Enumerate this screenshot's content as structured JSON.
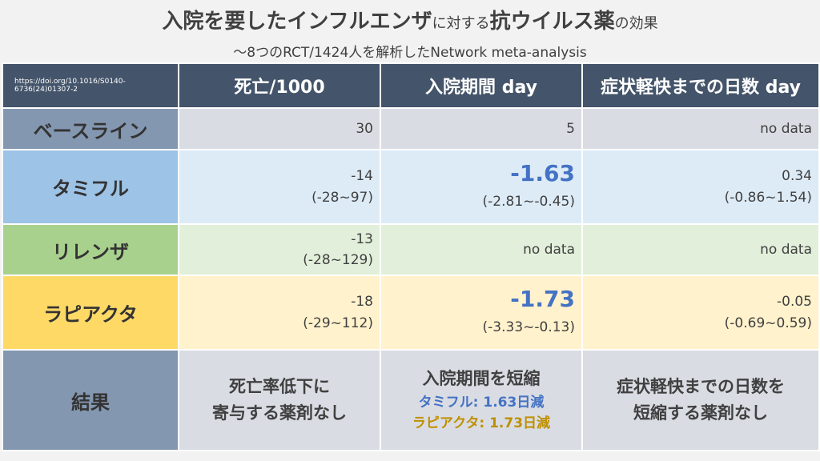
{
  "title": {
    "part1": "入院を要したインフルエンザ",
    "part2": "に対する",
    "part3": "抗ウイルス薬",
    "part4": "の",
    "part5": "効果"
  },
  "subtitle": "〜8つのRCT/1424人を解析したNetwork meta-analysis",
  "header": {
    "doi": "https://doi.org/10.1016/S0140-6736(24)01307-2",
    "col1": "死亡/1000",
    "col2": "入院期間 day",
    "col3": "症状軽快までの日数 day"
  },
  "rows": {
    "baseline": {
      "label": "ベースライン",
      "death": "30",
      "hosp": "5",
      "symptom": "no data"
    },
    "tamiflu": {
      "label": "タミフル",
      "death": "-14",
      "death_ci": "(-28~97)",
      "hosp": "-1.63",
      "hosp_ci": "(-2.81~-0.45)",
      "symptom": "0.34",
      "symptom_ci": "(-0.86~1.54)"
    },
    "relenza": {
      "label": "リレンザ",
      "death": "-13",
      "death_ci": "(-28~129)",
      "hosp": "no data",
      "symptom": "no data"
    },
    "rapiacta": {
      "label": "ラピアクタ",
      "death": "-18",
      "death_ci": "(-29~112)",
      "hosp": "-1.73",
      "hosp_ci": "(-3.33~-0.13)",
      "symptom": "-0.05",
      "symptom_ci": "(-0.69~0.59)"
    },
    "result": {
      "label": "結果",
      "death_l1": "死亡率低下に",
      "death_l2": "寄与する薬剤なし",
      "hosp_l1": "入院期間を短縮",
      "hosp_l2": "タミフル: 1.63日減",
      "hosp_l3": "ラピアクタ: 1.73日減",
      "symptom_l1": "症状軽快までの日数を",
      "symptom_l2": "短縮する薬剤なし"
    }
  },
  "colors": {
    "header": "#44546a",
    "tamiflu": "#9dc3e6",
    "relenza": "#a9d18e",
    "rapiacta": "#ffd966",
    "highlight_blue": "#4472c4",
    "highlight_gold": "#bf9000"
  }
}
